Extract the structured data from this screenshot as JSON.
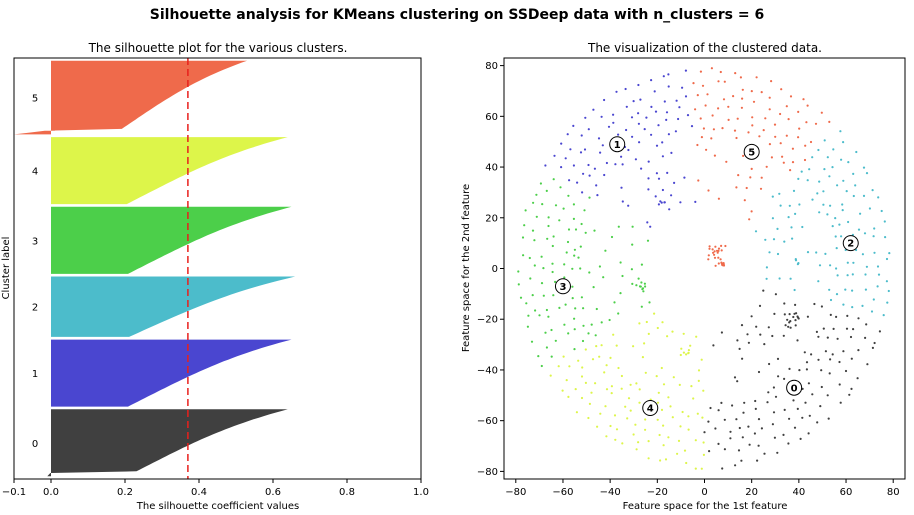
{
  "suptitle": "Silhouette analysis for KMeans clustering on SSDeep data with n_clusters = 6",
  "chart_data": [
    {
      "type": "area",
      "title": "The silhouette plot for the various clusters.",
      "xlabel": "The silhouette coefficient values",
      "ylabel": "Cluster label",
      "xlim": [
        -0.1,
        1.0
      ],
      "xticks": [
        -0.1,
        0.0,
        0.2,
        0.4,
        0.6,
        0.8,
        1.0
      ],
      "xtick_labels": [
        "−0.1",
        "0.0",
        "0.2",
        "0.4",
        "0.6",
        "0.8",
        "1.0"
      ],
      "average_silhouette": 0.37,
      "clusters": [
        {
          "label": "0",
          "color": "#404040",
          "min_value": -0.01,
          "max_value": 0.64,
          "size": 200
        },
        {
          "label": "1",
          "color": "#4a46d0",
          "min_value": 0.0,
          "max_value": 0.65,
          "size": 200
        },
        {
          "label": "2",
          "color": "#4cbccb",
          "min_value": 0.0,
          "max_value": 0.66,
          "size": 180
        },
        {
          "label": "3",
          "color": "#4ccf4a",
          "min_value": 0.0,
          "max_value": 0.65,
          "size": 200
        },
        {
          "label": "4",
          "color": "#ddf54a",
          "min_value": 0.0,
          "max_value": 0.64,
          "size": 200
        },
        {
          "label": "5",
          "color": "#ef6a4b",
          "min_value": -0.1,
          "max_value": 0.53,
          "size": 220
        }
      ]
    },
    {
      "type": "scatter",
      "title": "The visualization of the clustered data.",
      "xlabel": "Feature space for the 1st feature",
      "ylabel": "Feature space for the 2nd feature",
      "xlim": [
        -85,
        85
      ],
      "ylim": [
        -83,
        83
      ],
      "xticks": [
        -80,
        -60,
        -40,
        -20,
        0,
        20,
        40,
        60,
        80
      ],
      "xtick_labels": [
        "−80",
        "−60",
        "−40",
        "−20",
        "0",
        "20",
        "40",
        "60",
        "80"
      ],
      "yticks": [
        -80,
        -60,
        -40,
        -20,
        0,
        20,
        40,
        60,
        80
      ],
      "ytick_labels": [
        "−80",
        "−60",
        "−40",
        "−20",
        "0",
        "20",
        "40",
        "60",
        "80"
      ],
      "disk_radius": 78,
      "clusters": [
        {
          "label": "0",
          "color": "#404040",
          "angle_range": [
            270,
            345
          ],
          "center": [
            38,
            -47
          ]
        },
        {
          "label": "1",
          "color": "#4a46d0",
          "angle_range": [
            95,
            150
          ],
          "center": [
            -37,
            49
          ]
        },
        {
          "label": "2",
          "color": "#4cbccb",
          "angle_range": [
            345,
            405
          ],
          "center": [
            62,
            10
          ]
        },
        {
          "label": "3",
          "color": "#4ccf4a",
          "angle_range": [
            150,
            210
          ],
          "center": [
            -60,
            -7
          ]
        },
        {
          "label": "4",
          "color": "#ddf54a",
          "angle_range": [
            210,
            270
          ],
          "center": [
            -23,
            -55
          ]
        },
        {
          "label": "5",
          "color": "#ef6a4b",
          "angle_range": [
            45,
            95
          ],
          "center": [
            20,
            46
          ]
        }
      ]
    }
  ]
}
